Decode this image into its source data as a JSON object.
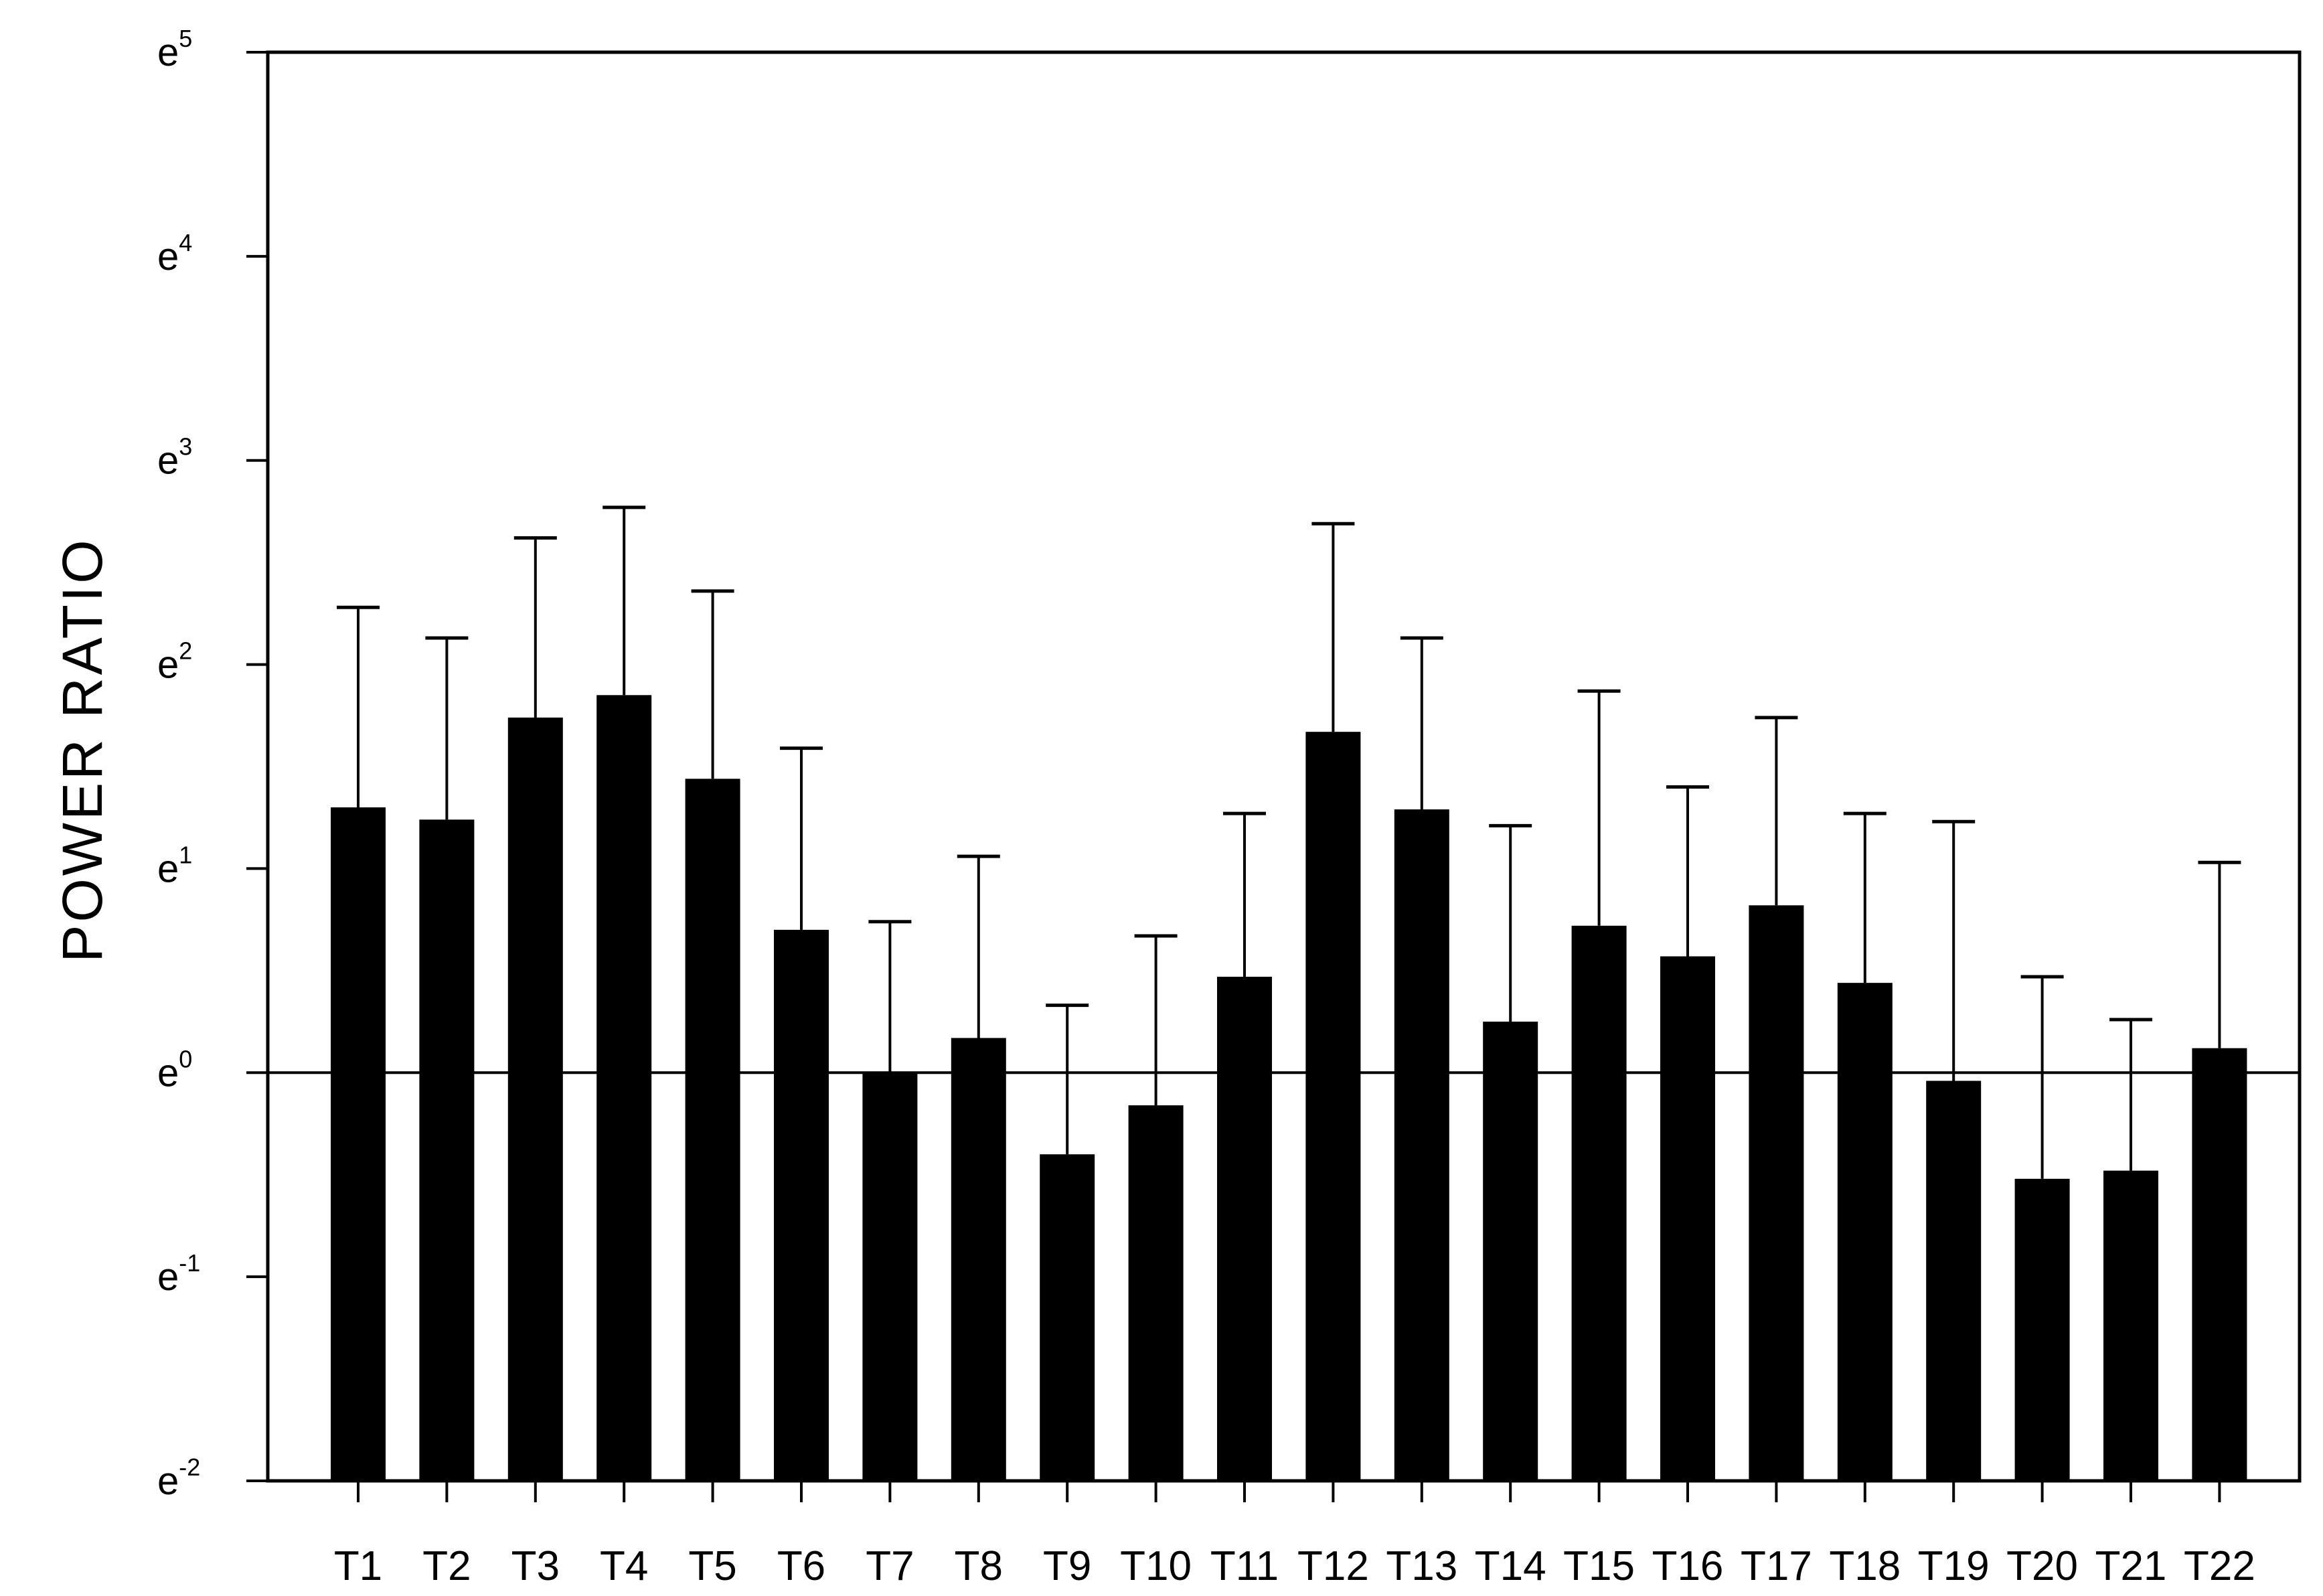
{
  "chart_data": {
    "type": "bar",
    "ylabel": "POWER RATIO",
    "yscale": "natural-log",
    "ylim": [
      -2,
      5
    ],
    "baseline": 0,
    "yticks": [
      {
        "base": "e",
        "exp": "-2"
      },
      {
        "base": "e",
        "exp": "-1"
      },
      {
        "base": "e",
        "exp": "0"
      },
      {
        "base": "e",
        "exp": "1"
      },
      {
        "base": "e",
        "exp": "2"
      },
      {
        "base": "e",
        "exp": "3"
      },
      {
        "base": "e",
        "exp": "4"
      },
      {
        "base": "e",
        "exp": "5"
      }
    ],
    "categories": [
      "T1",
      "T2",
      "T3",
      "T4",
      "T5",
      "T6",
      "T7",
      "T8",
      "T9",
      "T10",
      "T11",
      "T12",
      "T13",
      "T14",
      "T15",
      "T16",
      "T17",
      "T18",
      "T19",
      "T20",
      "T21",
      "T22"
    ],
    "values": [
      1.3,
      1.24,
      1.74,
      1.85,
      1.44,
      0.7,
      0.0,
      0.17,
      -0.4,
      -0.16,
      0.47,
      1.67,
      1.29,
      0.25,
      0.72,
      0.57,
      0.82,
      0.44,
      -0.04,
      -0.52,
      -0.48,
      0.12
    ],
    "error_upper": [
      2.28,
      2.13,
      2.62,
      2.77,
      2.36,
      1.59,
      0.74,
      1.06,
      0.33,
      0.67,
      1.27,
      2.69,
      2.13,
      1.21,
      1.87,
      1.4,
      1.74,
      1.27,
      1.23,
      0.47,
      0.26,
      1.03
    ]
  }
}
